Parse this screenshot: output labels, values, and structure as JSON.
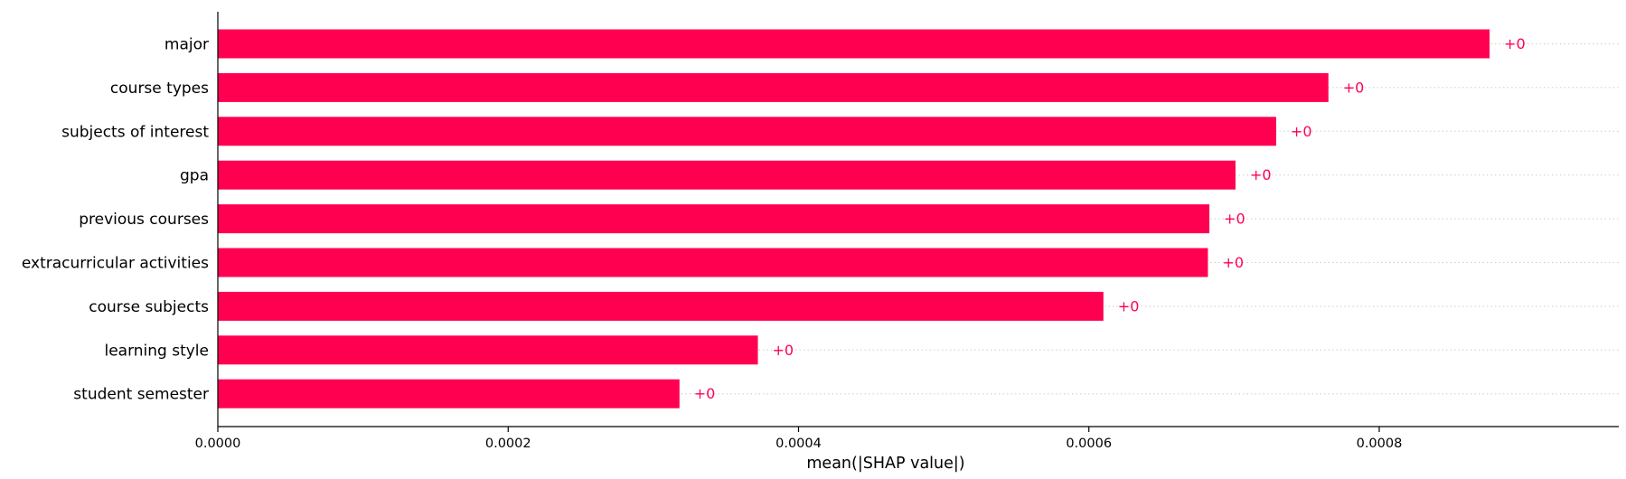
{
  "chart_data": {
    "type": "bar",
    "orientation": "horizontal",
    "categories": [
      "major",
      "course types",
      "subjects of interest",
      "gpa",
      "previous courses",
      "extracurricular activities",
      "course subjects",
      "learning style",
      "student semester"
    ],
    "values": [
      0.000876,
      0.000765,
      0.000729,
      0.000701,
      0.000683,
      0.000682,
      0.00061,
      0.000372,
      0.000318
    ],
    "value_labels": [
      "+0",
      "+0",
      "+0",
      "+0",
      "+0",
      "+0",
      "+0",
      "+0",
      "+0"
    ],
    "xlabel": "mean(|SHAP value|)",
    "xlim": [
      0,
      0.000965
    ],
    "xticks": [
      0,
      0.0002,
      0.0004,
      0.0006,
      0.0008
    ],
    "xtick_labels": [
      "0.0000",
      "0.0002",
      "0.0004",
      "0.0006",
      "0.0008"
    ],
    "bar_color": "#ff0051",
    "label_color": "#ff0051",
    "grid": "dotted horizontal guide lines"
  }
}
